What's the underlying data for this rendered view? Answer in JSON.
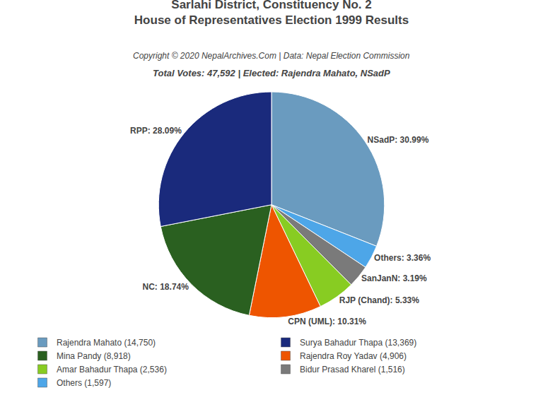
{
  "chart_data": {
    "type": "pie",
    "title": "Sarlahi District, Constituency No. 2\nHouse of Representatives Election 1999 Results",
    "annotations": [
      "Copyright © 2020 NepalArchives.Com | Data: Nepal Election Commission"
    ],
    "subtitle": "Total Votes: 47,592 | Elected: Rajendra Mahato, NSadP",
    "values": [
      30.99,
      3.36,
      3.19,
      5.33,
      10.31,
      18.74,
      28.09
    ],
    "value_labels": [
      "NSadP: 30.99%",
      "Others: 3.36%",
      "SanJanN: 3.19%",
      "RJP (Chand): 5.33%",
      "CPN (UML): 10.31%",
      "NC: 18.74%",
      "RPP: 28.09%"
    ],
    "colors": [
      "#6a9bbf",
      "#4da6e8",
      "#7a7a7a",
      "#88cc22",
      "#ee5500",
      "#2a6020",
      "#1a2a7c"
    ],
    "data_labels": true,
    "legend": "lower left",
    "legend_entries": [
      {
        "name": "Rajendra Mahato (14,750)",
        "color": "#6a9bbf"
      },
      {
        "name": "Surya Bahadur Thapa (13,369)",
        "color": "#1a2a7c"
      },
      {
        "name": "Mina Pandy (8,918)",
        "color": "#2a6020"
      },
      {
        "name": "Rajendra Roy Yadav (4,906)",
        "color": "#ee5500"
      },
      {
        "name": "Amar Bahadur Thapa (2,536)",
        "color": "#88cc22"
      },
      {
        "name": "Bidur Prasad Kharel (1,516)",
        "color": "#7a7a7a"
      },
      {
        "name": "Others (1,597)",
        "color": "#4da6e8"
      }
    ]
  }
}
